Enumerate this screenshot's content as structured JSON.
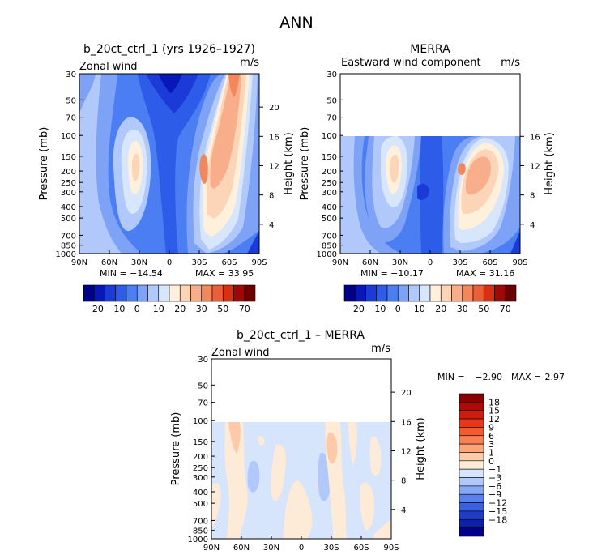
{
  "title": "ANN",
  "chart_data": [
    {
      "type": "heatmap",
      "title": "b_20ct_ctrl_1 (yrs 1926–1927)",
      "subtitle_left": "Zonal wind",
      "subtitle_right": "m/s",
      "xlabel": "",
      "ylabel": "Pressure (mb)",
      "y2label": "Height (km)",
      "xticks": [
        "90N",
        "60N",
        "30N",
        "0",
        "30S",
        "60S",
        "90S"
      ],
      "yticks": [
        "30",
        "50",
        "70",
        "100",
        "150",
        "200",
        "250",
        "300",
        "400",
        "500",
        "700",
        "850",
        "1000"
      ],
      "y2ticks": [
        "20",
        "16",
        "12",
        "8",
        "4"
      ],
      "ylim": [
        1000,
        30
      ],
      "min_label": "MIN = −14.54",
      "max_label": "MAX = 33.95",
      "min": -14.54,
      "max": 33.95,
      "jets": [
        {
          "lat": -35,
          "p": 200,
          "value": 22
        },
        {
          "lat": 38,
          "p": 200,
          "value": 18
        }
      ],
      "colorbar_labels": [
        "−20",
        "−10",
        "0",
        "10",
        "20",
        "30",
        "50",
        "70"
      ],
      "colorbar_colors": [
        "#00008a",
        "#0818b8",
        "#1c3ad8",
        "#2c5ce8",
        "#4a7ef2",
        "#7ea2f6",
        "#b0c8fa",
        "#d8e6fc",
        "#fff0dc",
        "#fcd4b8",
        "#f8ae8a",
        "#f2865c",
        "#ec5e36",
        "#d83010",
        "#a00808",
        "#6a0000"
      ]
    },
    {
      "type": "heatmap",
      "title": "MERRA",
      "subtitle_left": "Eastward wind component",
      "subtitle_right": "m/s",
      "xlabel": "",
      "ylabel": "Pressure (mb)",
      "y2label": "Height (km)",
      "xticks": [
        "90N",
        "60N",
        "30N",
        "0",
        "30S",
        "60S",
        "90S"
      ],
      "yticks": [
        "30",
        "50",
        "70",
        "100",
        "150",
        "200",
        "250",
        "300",
        "400",
        "500",
        "700",
        "850",
        "1000"
      ],
      "y2ticks": [
        "16",
        "12",
        "8",
        "4"
      ],
      "ylim": [
        1000,
        30
      ],
      "data_top_p": 100,
      "min_label": "MIN = −10.17",
      "max_label": "MAX = 31.16",
      "min": -10.17,
      "max": 31.16,
      "jets": [
        {
          "lat": -40,
          "p": 200,
          "value": 22
        },
        {
          "lat": 38,
          "p": 200,
          "value": 16
        }
      ],
      "colorbar_labels": [
        "−20",
        "−10",
        "0",
        "10",
        "20",
        "30",
        "50",
        "70"
      ],
      "colorbar_colors": [
        "#00008a",
        "#0818b8",
        "#1c3ad8",
        "#2c5ce8",
        "#4a7ef2",
        "#7ea2f6",
        "#b0c8fa",
        "#d8e6fc",
        "#fff0dc",
        "#fcd4b8",
        "#f8ae8a",
        "#f2865c",
        "#ec5e36",
        "#d83010",
        "#a00808",
        "#6a0000"
      ]
    },
    {
      "type": "heatmap",
      "title": "b_20ct_ctrl_1 – MERRA",
      "subtitle_left": "Zonal wind",
      "subtitle_right": "m/s",
      "xlabel": "",
      "ylabel": "Pressure (mb)",
      "y2label": "Height (km)",
      "xticks": [
        "90N",
        "60N",
        "30N",
        "0",
        "30S",
        "60S",
        "90S"
      ],
      "yticks": [
        "30",
        "50",
        "70",
        "100",
        "150",
        "200",
        "250",
        "300",
        "400",
        "500",
        "700",
        "850",
        "1000"
      ],
      "y2ticks": [
        "20",
        "16",
        "12",
        "8",
        "4"
      ],
      "ylim": [
        1000,
        30
      ],
      "data_top_p": 100,
      "min_label": "MIN =",
      "min_value": "−2.90",
      "max_label": "MAX =",
      "max_value": "2.97",
      "min": -2.9,
      "max": 2.97,
      "colorbar_labels": [
        "18",
        "15",
        "12",
        "9",
        "6",
        "3",
        "1",
        "0",
        "−1",
        "−3",
        "−6",
        "−9",
        "−12",
        "−15",
        "−18"
      ],
      "colorbar_colors": [
        "#8a0000",
        "#b00808",
        "#d01c10",
        "#e83818",
        "#f45a30",
        "#f88052",
        "#fca67c",
        "#fccaa8",
        "#fdebd8",
        "#d6e4fc",
        "#b0c8fa",
        "#86a8f4",
        "#5a82ec",
        "#3a60e0",
        "#1e3cc8",
        "#0c20a8",
        "#000088"
      ]
    }
  ]
}
